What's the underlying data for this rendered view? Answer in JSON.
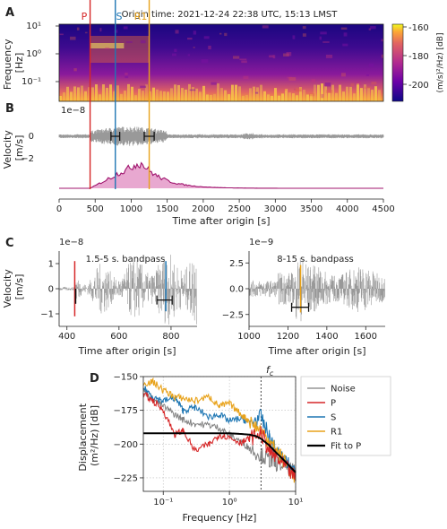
{
  "colors": {
    "P": "#d62728",
    "S": "#1f77b4",
    "R1": "#e8a21a",
    "wave": "#999999",
    "env": "#a0146e",
    "envFill": "#e8a8d0",
    "fit": "#000000",
    "noise": "#808080"
  },
  "chart_data": [
    {
      "panel": "A",
      "type": "heatmap",
      "header": "Origin time: 2021-12-24 22:38 UTC, 15:13 LMST",
      "ylabel": "Frequency\n[Hz]",
      "ytick_labels": [
        "10¹",
        "10⁰",
        "10⁻¹"
      ],
      "xlim": [
        0,
        4500
      ],
      "phase_labels": [
        "P",
        "S",
        "R1"
      ],
      "phase_times": [
        430,
        780,
        1250
      ],
      "colorbar": {
        "label": "(m/s)²/Hz) [dB]",
        "ticks": [
          -160,
          -180,
          -200
        ],
        "range": [
          -210,
          -155
        ]
      }
    },
    {
      "panel": "B",
      "type": "line",
      "ylabel": "Velocity\n[m/s]",
      "scale_label": "1e−8",
      "ytick_labels": [
        "0",
        "−2"
      ],
      "xlabel": "Time after origin [s]",
      "xticks": [
        0,
        500,
        1000,
        1500,
        2000,
        2500,
        3000,
        3500,
        4000,
        4500
      ],
      "xlim": [
        0,
        4500
      ],
      "phase_times": [
        430,
        780,
        1250
      ]
    },
    {
      "panel": "C1",
      "type": "line",
      "annotation": "1.5-5 s. bandpass",
      "scale_label": "1e−8",
      "ylabel": "Velocity\n[m/s]",
      "xlabel": "Time after origin [s]",
      "xticks": [
        400,
        600,
        800
      ],
      "xlim": [
        370,
        900
      ],
      "yticks": [
        1,
        0,
        -1
      ],
      "ylim": [
        -1.5,
        1.5
      ],
      "phase_times": [
        430,
        780
      ]
    },
    {
      "panel": "C2",
      "type": "line",
      "annotation": "8-15 s. bandpass",
      "scale_label": "1e−9",
      "xlabel": "Time after origin [s]",
      "xticks": [
        1000,
        1200,
        1400,
        1600
      ],
      "xlim": [
        1000,
        1700
      ],
      "yticks": [
        2.5,
        0.0,
        -2.5
      ],
      "ylim": [
        -4,
        4
      ],
      "phase_times": [
        1265
      ]
    },
    {
      "panel": "D",
      "type": "line",
      "xlabel": "Frequency [Hz]",
      "ylabel": "Displacement\n(m²/Hz) [dB]",
      "xscale": "log",
      "xlim": [
        0.05,
        10
      ],
      "ylim": [
        -235,
        -150
      ],
      "xtick_labels": [
        "10⁻¹",
        "10⁰",
        "10¹"
      ],
      "yticks": [
        -150,
        -175,
        -200,
        -225
      ],
      "corner_label": "f_c",
      "corner_frequency": 3.0,
      "legend_position": "right",
      "series": [
        {
          "name": "Noise",
          "x": [
            0.05,
            0.07,
            0.1,
            0.15,
            0.2,
            0.3,
            0.5,
            0.7,
            1,
            1.5,
            2,
            3,
            4,
            5,
            7,
            10
          ],
          "y": [
            -160,
            -167,
            -172,
            -178,
            -182,
            -185,
            -186,
            -188,
            -193,
            -198,
            -203,
            -208,
            -212,
            -214,
            -216,
            -222
          ]
        },
        {
          "name": "P",
          "x": [
            0.05,
            0.07,
            0.1,
            0.15,
            0.2,
            0.3,
            0.5,
            0.7,
            1,
            1.5,
            2,
            3,
            4,
            5,
            7,
            10
          ],
          "y": [
            -163,
            -168,
            -175,
            -193,
            -190,
            -205,
            -200,
            -193,
            -195,
            -199,
            -196,
            -192,
            -205,
            -210,
            -217,
            -225
          ]
        },
        {
          "name": "S",
          "x": [
            0.05,
            0.07,
            0.1,
            0.15,
            0.2,
            0.3,
            0.5,
            0.7,
            1,
            1.5,
            2,
            3,
            4,
            5,
            7,
            10
          ],
          "y": [
            -158,
            -165,
            -168,
            -166,
            -175,
            -173,
            -180,
            -178,
            -183,
            -181,
            -184,
            -180,
            -195,
            -205,
            -213,
            -222
          ]
        },
        {
          "name": "R1",
          "x": [
            0.05,
            0.07,
            0.1,
            0.15,
            0.2,
            0.3,
            0.5,
            0.7,
            1,
            1.5,
            2,
            3,
            4,
            5,
            7,
            10
          ],
          "y": [
            -155,
            -154,
            -160,
            -165,
            -166,
            -168,
            -165,
            -172,
            -170,
            -178,
            -183,
            -190,
            -198,
            -204,
            -214,
            -225
          ]
        },
        {
          "name": "Fit to P",
          "x": [
            0.05,
            0.1,
            0.3,
            0.6,
            1,
            1.5,
            2,
            2.5,
            3,
            4,
            5,
            7,
            10
          ],
          "y": [
            -192,
            -192,
            -192,
            -192,
            -192,
            -192.5,
            -193,
            -194,
            -196,
            -201,
            -206,
            -213,
            -221
          ]
        }
      ]
    }
  ]
}
